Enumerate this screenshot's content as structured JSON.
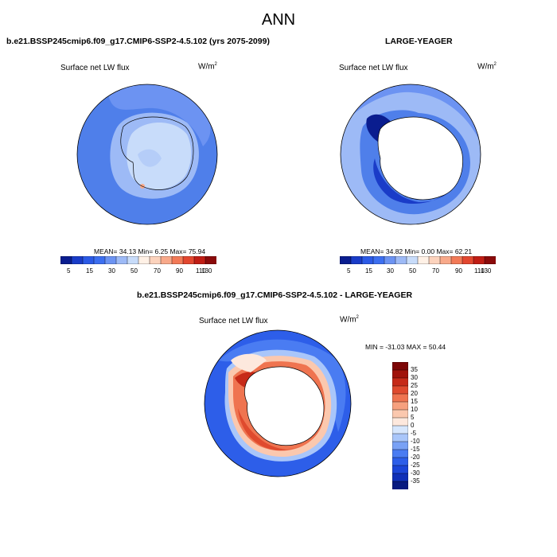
{
  "page": {
    "title": "ANN"
  },
  "panels": [
    {
      "id": "model",
      "case_title": "b.e21.BSSP245cmip6.f09_g17.CMIP6-SSP2-4.5.102 (yrs 2075-2099)",
      "field": "Surface net LW flux",
      "units_base": "W/m",
      "units_sup": "2",
      "stats": "MEAN=  34.13  Min=   6.25  Max=  75.94"
    },
    {
      "id": "obs",
      "case_title": "LARGE-YEAGER",
      "field": "Surface net LW flux",
      "units_base": "W/m",
      "units_sup": "2",
      "stats": "MEAN=  34.82  Min=   0.00  Max=  62.21"
    },
    {
      "id": "diff",
      "case_title": "b.e21.BSSP245cmip6.f09_g17.CMIP6-SSP2-4.5.102 - LARGE-YEAGER",
      "field": "Surface net LW flux",
      "units_base": "W/m",
      "units_sup": "2",
      "stats": "MIN = -31.03 MAX =  50.44"
    }
  ],
  "colorbars": {
    "absolute": {
      "colors": [
        "#0a1d8f",
        "#1a3cc8",
        "#2b5ae6",
        "#3c6ff0",
        "#6c93f2",
        "#9dbaf6",
        "#c8dcfa",
        "#fff1e6",
        "#fcd3bd",
        "#f8a98a",
        "#f27a57",
        "#e2472f",
        "#c01d14",
        "#8a0a0a"
      ],
      "labels": [
        "5",
        "15",
        "30",
        "50",
        "70",
        "90",
        "110",
        "130"
      ]
    },
    "difference": {
      "colors": [
        "#081a80",
        "#0f2fb8",
        "#1b45d8",
        "#2d5ee9",
        "#4a7cf2",
        "#79a1f5",
        "#a9c6fa",
        "#d6e6fd",
        "#fde8dd",
        "#fbc8ae",
        "#f6a07e",
        "#ef7450",
        "#df4a2e",
        "#c62a18",
        "#a1130b",
        "#7d0606"
      ],
      "labels": [
        "35",
        "30",
        "25",
        "20",
        "15",
        "10",
        "5",
        "0",
        "-5",
        "-10",
        "-15",
        "-20",
        "-25",
        "-30",
        "-35"
      ]
    }
  }
}
